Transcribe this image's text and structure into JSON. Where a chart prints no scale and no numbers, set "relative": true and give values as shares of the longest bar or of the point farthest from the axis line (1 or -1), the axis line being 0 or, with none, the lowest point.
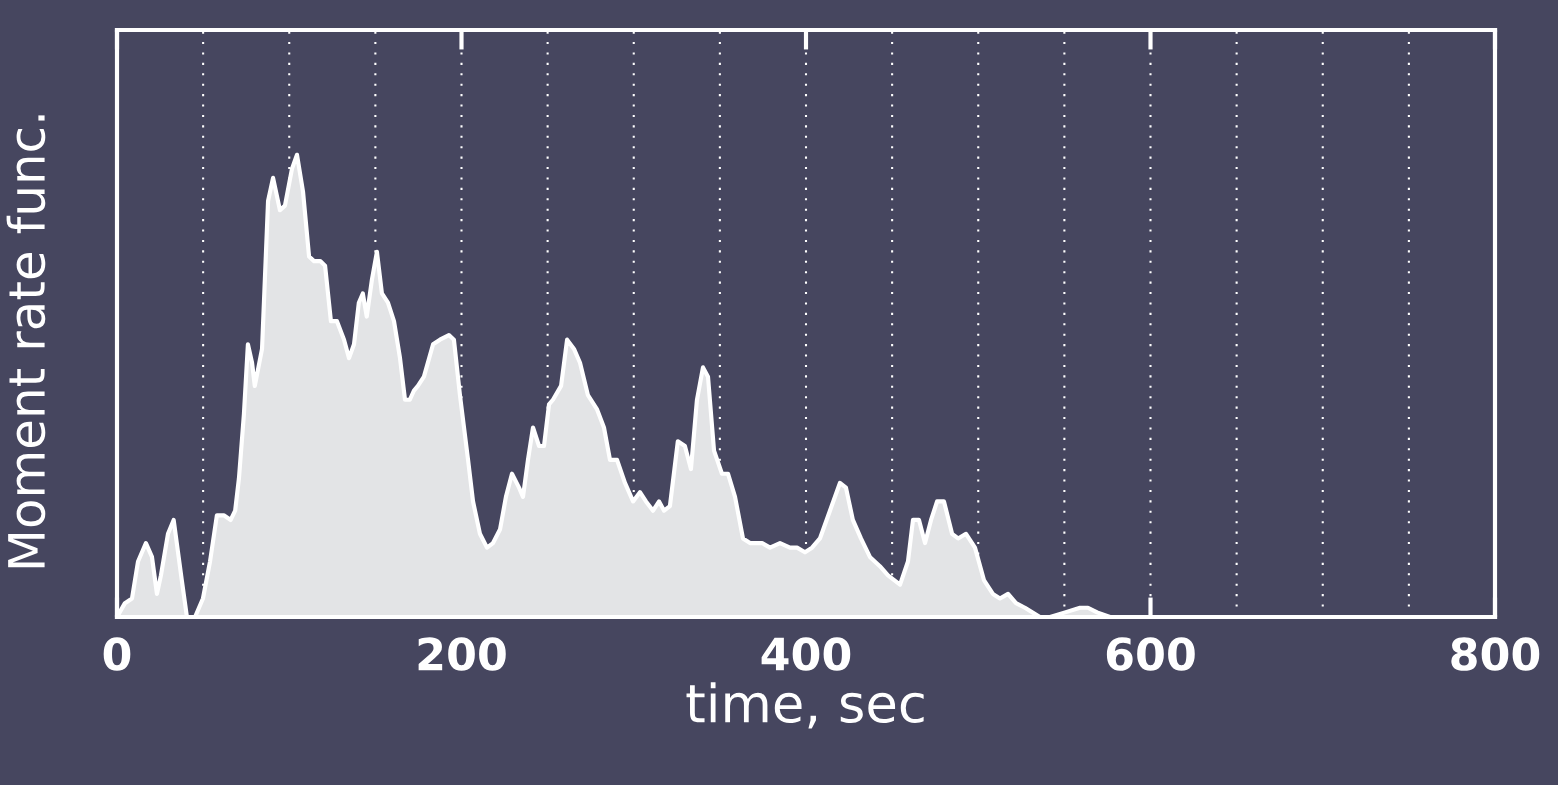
{
  "chart_data": {
    "type": "area",
    "relative": true,
    "xlabel": "time, sec",
    "ylabel": "Moment rate func.",
    "xlim": [
      0,
      800
    ],
    "xticks": [
      0,
      {
        "value": 50,
        "label": null
      },
      {
        "value": 100,
        "label": null
      },
      {
        "value": 150,
        "label": null
      },
      200,
      {
        "value": 250,
        "label": null
      },
      {
        "value": 300,
        "label": null
      },
      {
        "value": 350,
        "label": null
      },
      400,
      {
        "value": 450,
        "label": null
      },
      {
        "value": 500,
        "label": null
      },
      {
        "value": 550,
        "label": null
      },
      600,
      {
        "value": 650,
        "label": null
      },
      {
        "value": 700,
        "label": null
      },
      {
        "value": 750,
        "label": null
      },
      800
    ],
    "grid": "x",
    "legend": false,
    "series": [
      {
        "color": "#e3e4e6",
        "x": [
          0,
          4.6,
          8.7,
          12.2,
          16.8,
          20.3,
          23.2,
          25.5,
          29.6,
          32.9,
          35.8,
          37.6,
          40.6,
          45.3,
          49.9,
          54,
          58,
          62,
          66,
          68.6,
          70.8,
          73.7,
          76,
          78.4,
          80,
          84.2,
          87.7,
          90.6,
          94.6,
          97.5,
          101.6,
          104.5,
          108,
          111.5,
          114.4,
          118,
          120.8,
          124.2,
          127.7,
          131.8,
          134.7,
          137.6,
          140.4,
          142.7,
          145,
          148,
          150.9,
          153.8,
          157.3,
          160.8,
          164.3,
          167.2,
          170,
          172.4,
          174.7,
          178.2,
          183.5,
          187.5,
          192.7,
          195.6,
          199.1,
          203.8,
          206.7,
          210.7,
          214.8,
          218.3,
          222.4,
          225.8,
          229.3,
          233.4,
          235.7,
          238.6,
          241.5,
          245,
          247.9,
          250.8,
          253.1,
          257.8,
          261.3,
          265.3,
          268.8,
          273.4,
          278.6,
          282.7,
          286.2,
          290.3,
          294.9,
          299.6,
          303.6,
          307.1,
          311.2,
          314.7,
          317.6,
          321,
          325.6,
          329.7,
          333.2,
          336.7,
          340.2,
          343.1,
          346.6,
          351.2,
          354.7,
          358.8,
          363.4,
          367.5,
          374.5,
          379.1,
          384.9,
          390.7,
          394.8,
          399.4,
          403.5,
          408.1,
          413.9,
          419.7,
          423.2,
          427.2,
          431.9,
          437.1,
          442.9,
          447.6,
          454.6,
          459.2,
          462.1,
          465.6,
          469.1,
          472.6,
          476.1,
          480.1,
          484.8,
          488.3,
          492.9,
          498.1,
          503.3,
          508.5,
          512.6,
          517.3,
          521.9,
          527.1,
          535.8,
          541.7,
          550.4,
          559.1,
          563.7,
          569,
          576.5,
          800
        ],
        "values": [
          0,
          0.03,
          0.04,
          0.12,
          0.16,
          0.13,
          0.05,
          0.09,
          0.18,
          0.21,
          0.13,
          0.08,
          0,
          0,
          0.04,
          0.12,
          0.22,
          0.22,
          0.21,
          0.23,
          0.3,
          0.44,
          0.59,
          0.55,
          0.5,
          0.58,
          0.9,
          0.95,
          0.88,
          0.89,
          0.97,
          1,
          0.92,
          0.78,
          0.77,
          0.77,
          0.76,
          0.64,
          0.64,
          0.6,
          0.56,
          0.59,
          0.68,
          0.7,
          0.65,
          0.73,
          0.79,
          0.7,
          0.68,
          0.64,
          0.56,
          0.47,
          0.47,
          0.49,
          0.5,
          0.52,
          0.59,
          0.6,
          0.61,
          0.6,
          0.48,
          0.34,
          0.25,
          0.18,
          0.15,
          0.16,
          0.19,
          0.26,
          0.31,
          0.28,
          0.26,
          0.34,
          0.41,
          0.37,
          0.37,
          0.46,
          0.47,
          0.5,
          0.6,
          0.58,
          0.55,
          0.48,
          0.45,
          0.41,
          0.34,
          0.34,
          0.29,
          0.25,
          0.27,
          0.25,
          0.23,
          0.25,
          0.23,
          0.24,
          0.38,
          0.37,
          0.32,
          0.47,
          0.54,
          0.52,
          0.36,
          0.31,
          0.31,
          0.26,
          0.17,
          0.16,
          0.16,
          0.15,
          0.16,
          0.15,
          0.15,
          0.14,
          0.15,
          0.17,
          0.23,
          0.29,
          0.28,
          0.21,
          0.17,
          0.13,
          0.11,
          0.09,
          0.07,
          0.12,
          0.21,
          0.21,
          0.16,
          0.21,
          0.25,
          0.25,
          0.18,
          0.17,
          0.18,
          0.15,
          0.08,
          0.05,
          0.04,
          0.05,
          0.03,
          0.02,
          0,
          0,
          0.01,
          0.02,
          0.02,
          0.01,
          0,
          0
        ]
      }
    ]
  }
}
